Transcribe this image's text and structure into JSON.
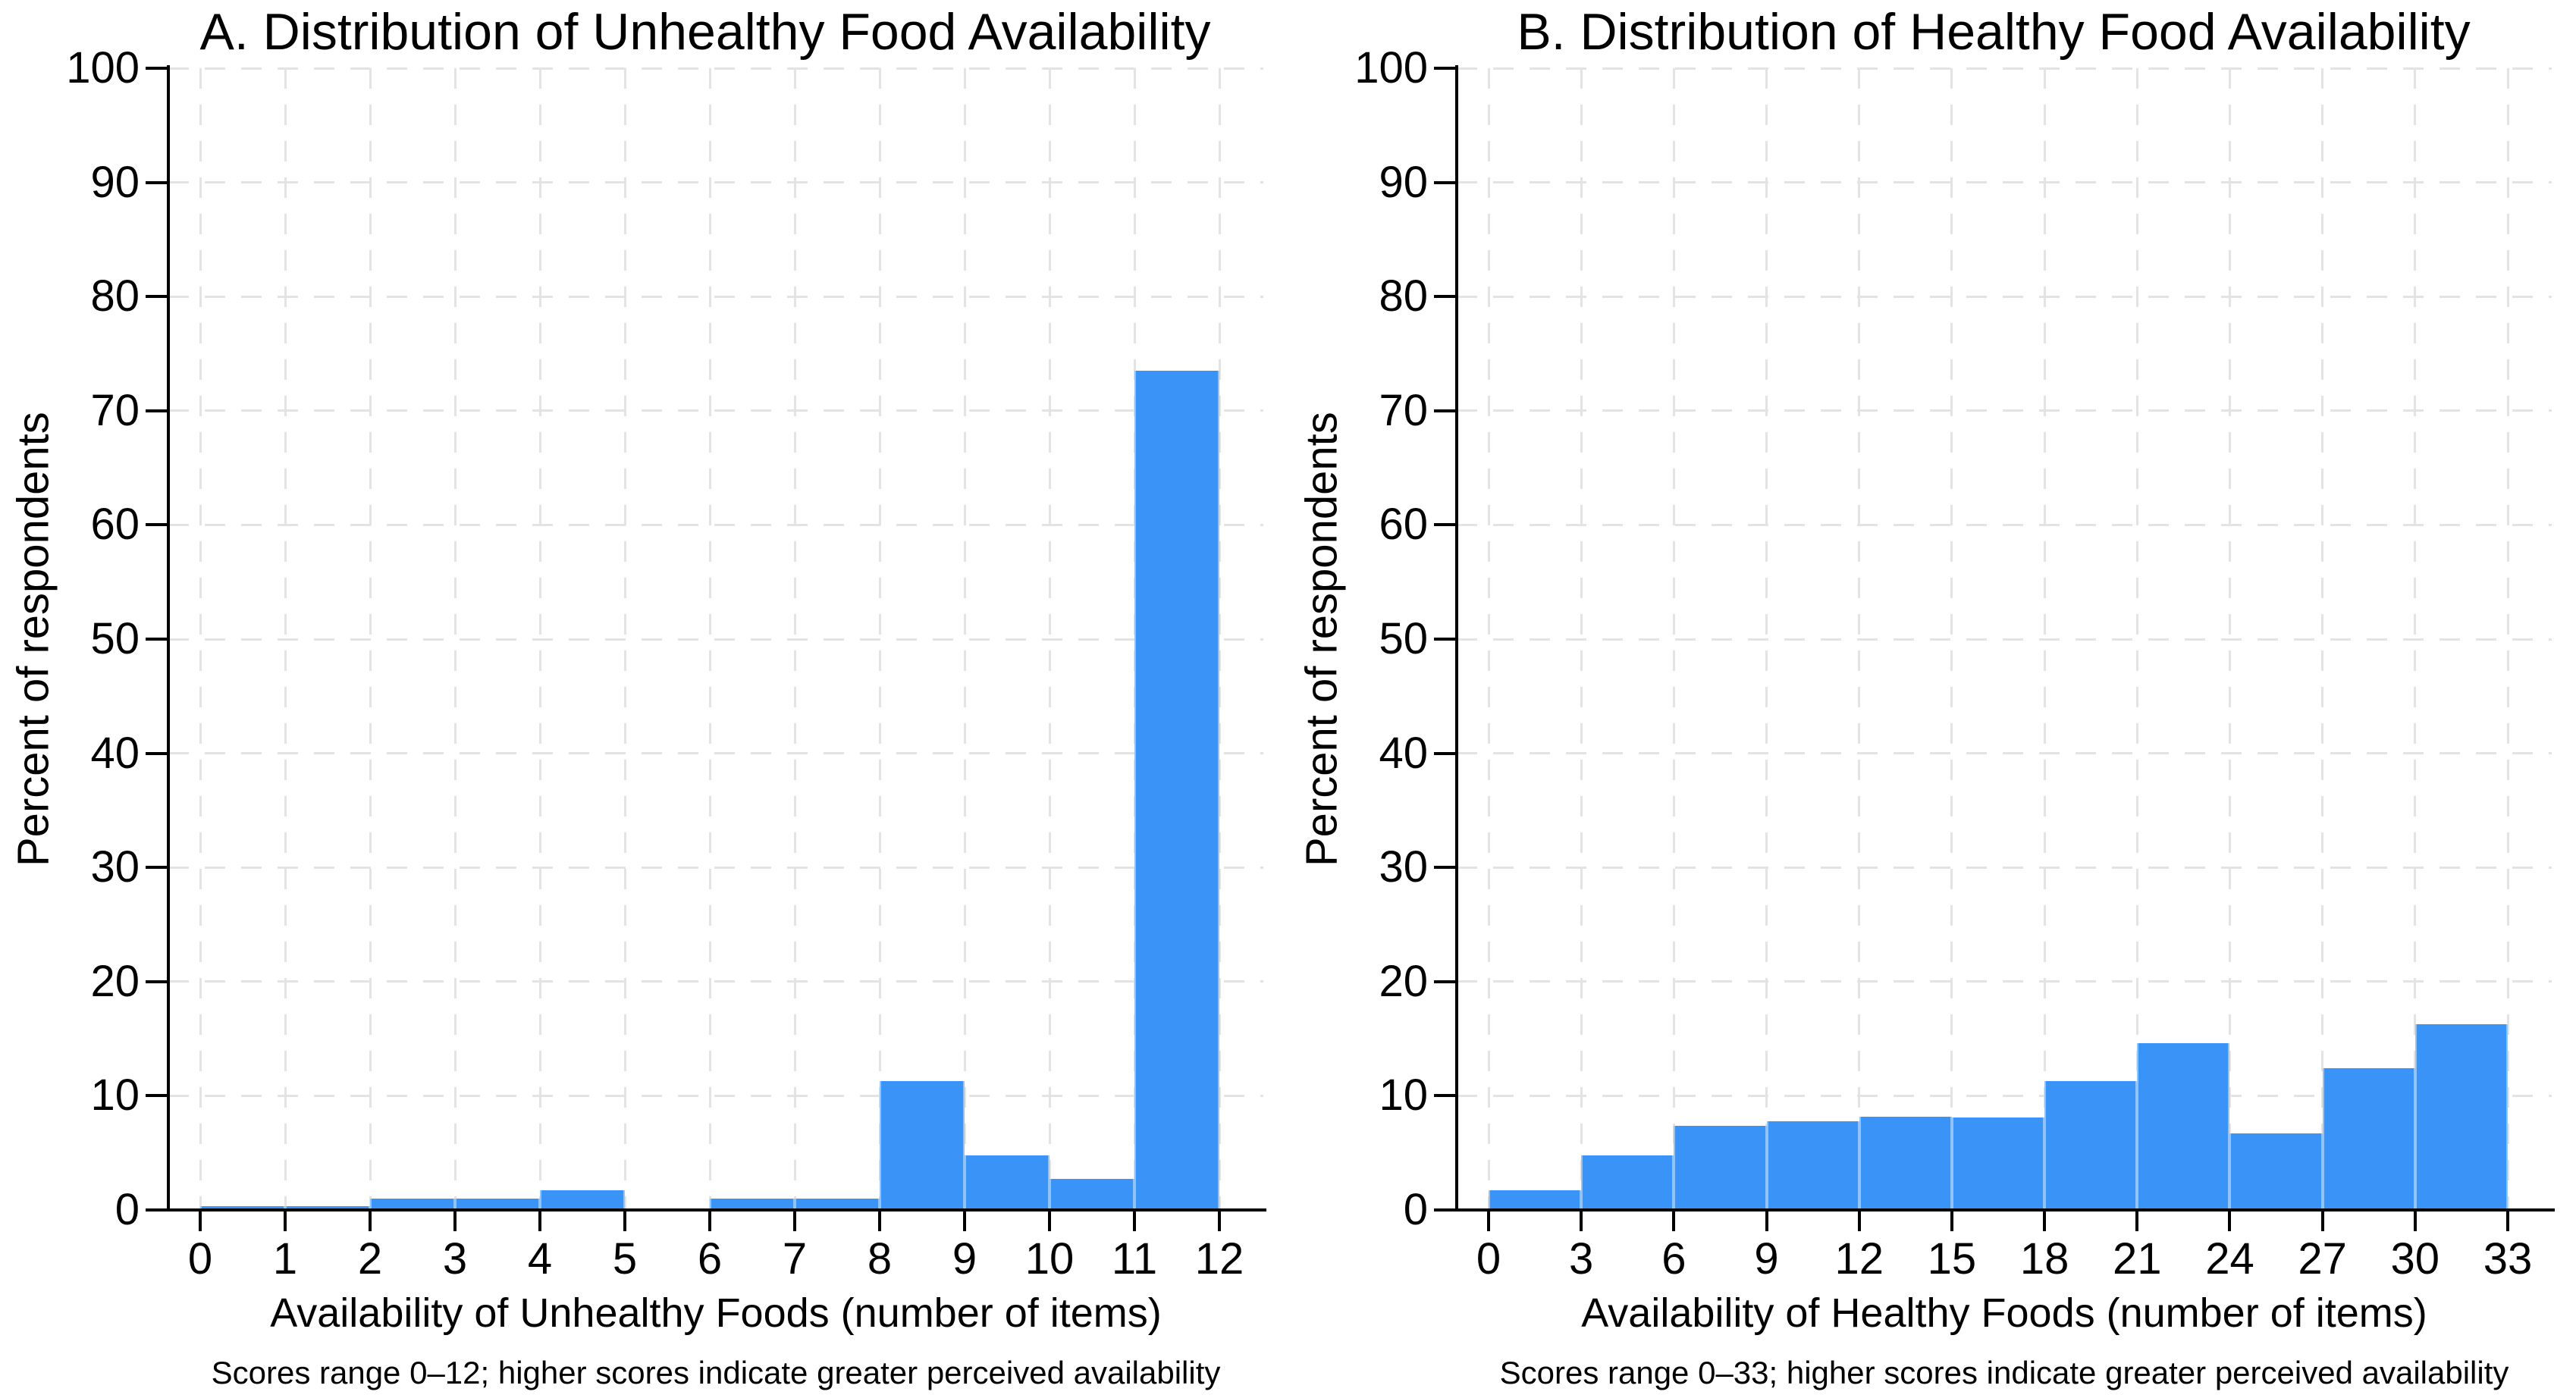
{
  "style": {
    "background": "#ffffff",
    "bar_color": "#3a93f6",
    "grid_color": "#e3e3e3",
    "axis_color": "#000000",
    "text_color": "#000000"
  },
  "chart_data": [
    {
      "type": "bar",
      "panel": "A",
      "title": "A. Distribution of Unhealthy Food Availability",
      "xlabel": "Availability of Unhealthy Foods (number of items)",
      "ylabel": "Percent of respondents",
      "note": "Scores range 0–12; higher scores indicate greater perceived availability",
      "bin_width": 1,
      "bin_starts": [
        0,
        1,
        2,
        3,
        4,
        5,
        6,
        7,
        8,
        9,
        10,
        11
      ],
      "values": [
        0.3,
        0.3,
        1.0,
        1.0,
        1.7,
        0.15,
        1.0,
        1.0,
        11.3,
        4.8,
        2.7,
        73.5
      ],
      "x_ticks": [
        0,
        1,
        2,
        3,
        4,
        5,
        6,
        7,
        8,
        9,
        10,
        11,
        12
      ],
      "y_ticks": [
        0,
        10,
        20,
        30,
        40,
        50,
        60,
        70,
        80,
        90,
        100
      ],
      "xlim": [
        0,
        12
      ],
      "ylim": [
        0,
        100
      ],
      "grid": true,
      "legend": "none"
    },
    {
      "type": "bar",
      "panel": "B",
      "title": "B. Distribution of Healthy Food Availability",
      "xlabel": "Availability of Healthy Foods (number of items)",
      "ylabel": "Percent of respondents",
      "note": "Scores range 0–33; higher scores indicate greater perceived availability",
      "bin_width": 3,
      "bin_starts": [
        0,
        3,
        6,
        9,
        12,
        15,
        18,
        21,
        24,
        27,
        30
      ],
      "values": [
        1.7,
        4.8,
        7.4,
        7.8,
        8.2,
        8.1,
        11.3,
        14.6,
        6.7,
        12.4,
        16.3
      ],
      "x_ticks": [
        0,
        3,
        6,
        9,
        12,
        15,
        18,
        21,
        24,
        27,
        30,
        33
      ],
      "y_ticks": [
        0,
        10,
        20,
        30,
        40,
        50,
        60,
        70,
        80,
        90,
        100
      ],
      "xlim": [
        0,
        33
      ],
      "ylim": [
        0,
        100
      ],
      "grid": true,
      "legend": "none"
    }
  ]
}
